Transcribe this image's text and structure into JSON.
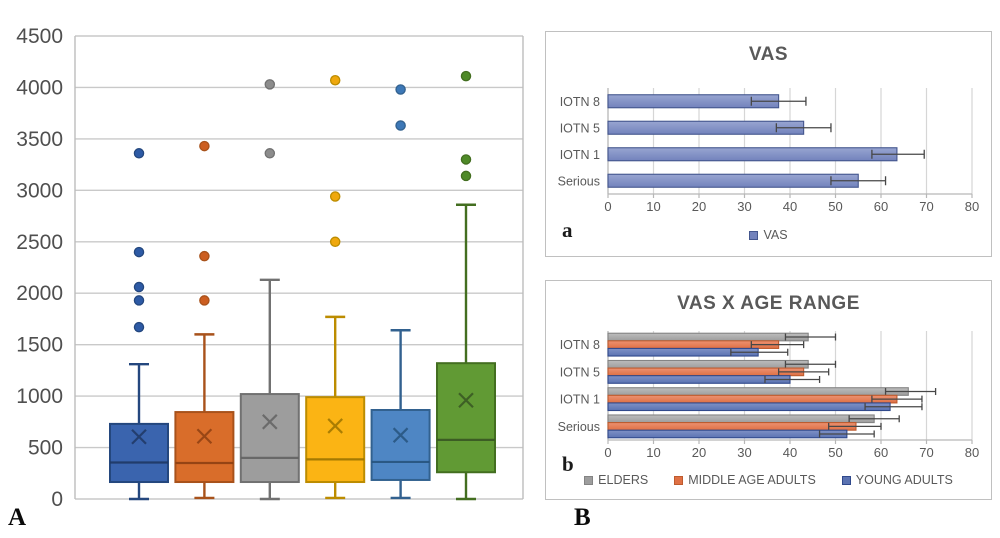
{
  "figure": {
    "panel_A_label": "A",
    "panel_B_label": "B"
  },
  "colors": {
    "grid_left": "#c9c9c9",
    "plot_border": "#bdbdbd",
    "grid_right": "#d6d6d6",
    "axis_line": "#b7b7b7",
    "error_bar": "#474747",
    "text": "#595959",
    "axis_text": "#4f4f4f"
  },
  "chart_data": [
    {
      "id": "boxplot",
      "type": "boxplot",
      "panel_label": "A",
      "title": "",
      "ylim": [
        0,
        4500
      ],
      "ytick_step": 500,
      "yticks": [
        0,
        500,
        1000,
        1500,
        2000,
        2500,
        3000,
        3500,
        4000,
        4500
      ],
      "grid": true,
      "series": [
        {
          "min": 0,
          "q1": 165,
          "median": 355,
          "q3": 730,
          "max": 1310,
          "mean": 605,
          "outliers": [
            1670,
            1930,
            2060,
            2400,
            3360
          ],
          "fill": "#3A64AE",
          "stroke": "#24477E",
          "accent": "#1F3864",
          "dot": "#2D5AA5"
        },
        {
          "min": 10,
          "q1": 165,
          "median": 350,
          "q3": 845,
          "max": 1600,
          "mean": 610,
          "outliers": [
            1930,
            2360,
            3430
          ],
          "fill": "#D96D2A",
          "stroke": "#A8521B",
          "accent": "#8E4012",
          "dot": "#CC5E20"
        },
        {
          "min": 0,
          "q1": 165,
          "median": 400,
          "q3": 1020,
          "max": 2130,
          "mean": 750,
          "outliers": [
            3360,
            4030
          ],
          "fill": "#9D9D9D",
          "stroke": "#717171",
          "accent": "#636363",
          "dot": "#8C8C8C"
        },
        {
          "min": 10,
          "q1": 165,
          "median": 385,
          "q3": 990,
          "max": 1770,
          "mean": 710,
          "outliers": [
            2500,
            2940,
            4070
          ],
          "fill": "#FBB414",
          "stroke": "#BC8C00",
          "accent": "#9C7400",
          "dot": "#EFA80D"
        },
        {
          "min": 10,
          "q1": 185,
          "median": 360,
          "q3": 865,
          "max": 1640,
          "mean": 620,
          "outliers": [
            3630,
            3980
          ],
          "fill": "#4E86C4",
          "stroke": "#32618F",
          "accent": "#27547E",
          "dot": "#3D78B7"
        },
        {
          "min": 0,
          "q1": 260,
          "median": 575,
          "q3": 1320,
          "max": 2860,
          "mean": 960,
          "outliers": [
            3140,
            3300,
            4110
          ],
          "fill": "#619A34",
          "stroke": "#436E20",
          "accent": "#385723",
          "dot": "#4F8A28"
        }
      ]
    },
    {
      "id": "vas",
      "type": "bar",
      "orientation": "horizontal",
      "title": "VAS",
      "panel_label": "a",
      "categories": [
        "IOTN 8",
        "IOTN 5",
        "IOTN 1",
        "Serious"
      ],
      "xlim": [
        0,
        80
      ],
      "xtick_step": 10,
      "xticks": [
        0,
        10,
        20,
        30,
        40,
        50,
        60,
        70,
        80
      ],
      "grid": true,
      "legend_position": "bottom",
      "series": [
        {
          "name": "VAS",
          "values": [
            37.5,
            43,
            63.5,
            55
          ],
          "err_low": [
            31.5,
            37,
            58,
            49
          ],
          "err_high": [
            43.5,
            49,
            69.5,
            61
          ],
          "fill_top": "#98A5D1",
          "fill_bottom": "#7282BC",
          "stroke": "#44568E"
        }
      ]
    },
    {
      "id": "vas_age",
      "type": "bar",
      "orientation": "horizontal",
      "title": "VAS X AGE RANGE",
      "panel_label": "b",
      "categories": [
        "IOTN 8",
        "IOTN 5",
        "IOTN 1",
        "Serious"
      ],
      "xlim": [
        0,
        80
      ],
      "xtick_step": 10,
      "xticks": [
        0,
        10,
        20,
        30,
        40,
        50,
        60,
        70,
        80
      ],
      "grid": true,
      "legend_position": "bottom",
      "series": [
        {
          "name": "ELDERS",
          "values": [
            44,
            44,
            66,
            58.5
          ],
          "err_low": [
            39,
            39,
            61,
            53
          ],
          "err_high": [
            50,
            50,
            72,
            64
          ],
          "fill_top": "#BDBDBD",
          "fill_bottom": "#9D9D9D",
          "stroke": "#848484"
        },
        {
          "name": "MIDDLE AGE ADULTS",
          "values": [
            37.5,
            43,
            63.5,
            54.5
          ],
          "err_low": [
            31.5,
            37.5,
            58,
            48.5
          ],
          "err_high": [
            43,
            48.5,
            69,
            60
          ],
          "fill_top": "#EC9272",
          "fill_bottom": "#DF7044",
          "stroke": "#BE5B2E"
        },
        {
          "name": "YOUNG ADULTS",
          "values": [
            33,
            40,
            62,
            52.5
          ],
          "err_low": [
            27,
            34.5,
            56.5,
            46.5
          ],
          "err_high": [
            39.5,
            46.5,
            69,
            58.5
          ],
          "fill_top": "#7F91C6",
          "fill_bottom": "#5B73B2",
          "stroke": "#30498C"
        }
      ]
    }
  ]
}
